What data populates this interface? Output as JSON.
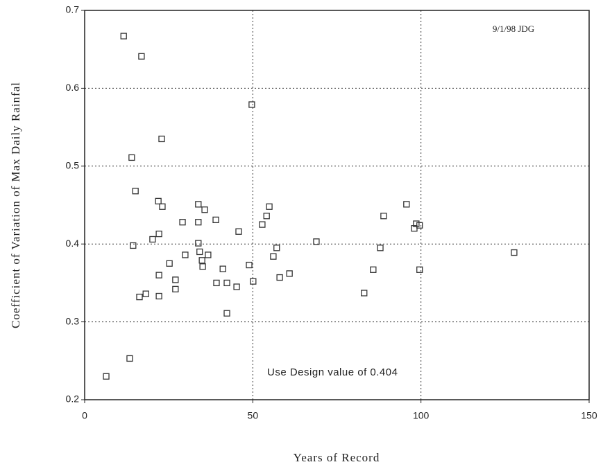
{
  "chart_data": {
    "type": "scatter",
    "xlabel": "Years of Record",
    "ylabel": "Coefficient of Variation of Max Daily Rainfal",
    "annotations": [
      "9/1/98 JDG",
      "Use Design value of 0.404"
    ],
    "xlim": [
      0,
      150
    ],
    "xticks": [
      0,
      50,
      100,
      150
    ],
    "ylim": [
      0.2,
      0.7
    ],
    "yticks": [
      0.2,
      0.3,
      0.4,
      0.5,
      0.6,
      0.7
    ],
    "grid": true,
    "color": "#333333",
    "x": [
      11.6,
      16.9,
      22.9,
      14.0,
      15.1,
      49.7,
      21.9,
      23.1,
      14.4,
      20.2,
      22.1,
      22.1,
      22.1,
      16.3,
      18.2,
      25.2,
      27.0,
      27.0,
      29.1,
      29.9,
      33.8,
      33.8,
      33.8,
      34.2,
      34.9,
      35.1,
      35.7,
      36.7,
      39.0,
      39.2,
      41.1,
      42.3,
      42.3,
      45.2,
      45.8,
      48.9,
      50.1,
      52.8,
      54.1,
      54.9,
      56.1,
      57.1,
      58.0,
      60.9,
      68.9,
      83.1,
      85.8,
      87.9,
      88.9,
      95.7,
      98.0,
      98.6,
      99.6,
      99.6,
      127.7,
      6.4,
      13.4
    ],
    "y": [
      0.667,
      0.641,
      0.535,
      0.511,
      0.468,
      0.579,
      0.455,
      0.448,
      0.398,
      0.406,
      0.413,
      0.36,
      0.333,
      0.332,
      0.336,
      0.375,
      0.354,
      0.342,
      0.428,
      0.386,
      0.451,
      0.428,
      0.401,
      0.39,
      0.379,
      0.371,
      0.444,
      0.386,
      0.431,
      0.35,
      0.368,
      0.35,
      0.311,
      0.345,
      0.416,
      0.373,
      0.352,
      0.425,
      0.436,
      0.448,
      0.384,
      0.395,
      0.357,
      0.362,
      0.403,
      0.337,
      0.367,
      0.395,
      0.436,
      0.451,
      0.42,
      0.426,
      0.424,
      0.367,
      0.389,
      0.23,
      0.253
    ]
  }
}
